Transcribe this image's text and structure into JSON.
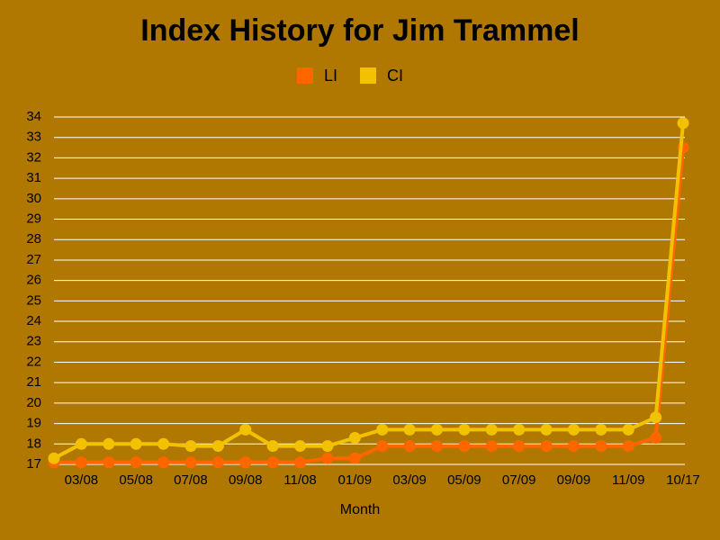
{
  "chart_data": {
    "type": "line",
    "title": "Index History for Jim Trammel",
    "x_label": "Month",
    "categories": [
      null,
      "03/08",
      null,
      "05/08",
      null,
      "07/08",
      null,
      "09/08",
      null,
      "11/08",
      null,
      "01/09",
      null,
      "03/09",
      null,
      "05/09",
      null,
      "07/09",
      null,
      "09/09",
      null,
      "11/09",
      null,
      "10/17"
    ],
    "series": [
      {
        "name": "LI",
        "color": "#ff6600",
        "values": [
          17.1,
          17.1,
          17.1,
          17.1,
          17.1,
          17.1,
          17.1,
          17.1,
          17.1,
          17.1,
          17.3,
          17.3,
          17.9,
          17.9,
          17.9,
          17.9,
          17.9,
          17.9,
          17.9,
          17.9,
          17.9,
          17.9,
          18.3,
          32.5
        ]
      },
      {
        "name": "CI",
        "color": "#f2c200",
        "values": [
          17.3,
          18.0,
          18.0,
          18.0,
          18.0,
          17.9,
          17.9,
          18.7,
          17.9,
          17.9,
          17.9,
          18.3,
          18.7,
          18.7,
          18.7,
          18.7,
          18.7,
          18.7,
          18.7,
          18.7,
          18.7,
          18.7,
          19.3,
          33.7
        ]
      }
    ],
    "ylim": [
      17,
      34
    ],
    "yticks": [
      17,
      18,
      19,
      20,
      21,
      22,
      23,
      24,
      25,
      26,
      27,
      28,
      29,
      30,
      31,
      32,
      33,
      34
    ],
    "grid": true,
    "legend": "top"
  }
}
